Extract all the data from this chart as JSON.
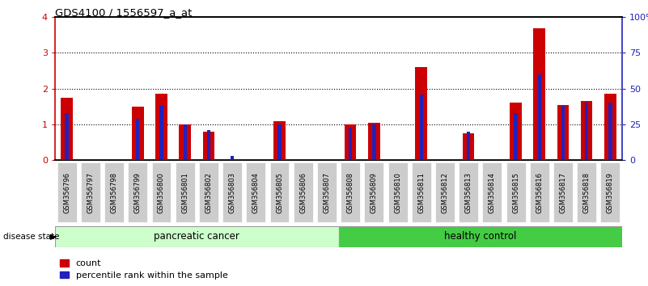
{
  "title": "GDS4100 / 1556597_a_at",
  "samples": [
    "GSM356796",
    "GSM356797",
    "GSM356798",
    "GSM356799",
    "GSM356800",
    "GSM356801",
    "GSM356802",
    "GSM356803",
    "GSM356804",
    "GSM356805",
    "GSM356806",
    "GSM356807",
    "GSM356808",
    "GSM356809",
    "GSM356810",
    "GSM356811",
    "GSM356812",
    "GSM356813",
    "GSM356814",
    "GSM356815",
    "GSM356816",
    "GSM356817",
    "GSM356818",
    "GSM356819"
  ],
  "count": [
    1.75,
    0.0,
    0.0,
    1.5,
    1.85,
    1.0,
    0.8,
    0.0,
    0.0,
    1.1,
    0.0,
    0.0,
    1.0,
    1.05,
    0.0,
    2.6,
    0.0,
    0.75,
    0.0,
    1.6,
    3.7,
    1.55,
    1.65,
    1.85
  ],
  "percentile": [
    33,
    0,
    0,
    29,
    38,
    25,
    21,
    3,
    0,
    25,
    0,
    0,
    23,
    25,
    0,
    46,
    0,
    20,
    0,
    33,
    60,
    38,
    40,
    40
  ],
  "group1_label": "pancreatic cancer",
  "group1_count": 12,
  "group2_label": "healthy control",
  "group2_count": 12,
  "left_ylim": [
    0,
    4
  ],
  "right_ylim": [
    0,
    100
  ],
  "left_yticks": [
    0,
    1,
    2,
    3,
    4
  ],
  "right_yticks": [
    0,
    25,
    50,
    75,
    100
  ],
  "right_yticklabels": [
    "0",
    "25",
    "50",
    "75",
    "100%"
  ],
  "red_color": "#cc0000",
  "blue_color": "#2222bb",
  "green_light": "#ccffcc",
  "green_dark": "#44cc44",
  "legend_count": "count",
  "legend_pct": "percentile rank within the sample",
  "disease_state_label": "disease state",
  "tick_bg_color": "#cccccc"
}
